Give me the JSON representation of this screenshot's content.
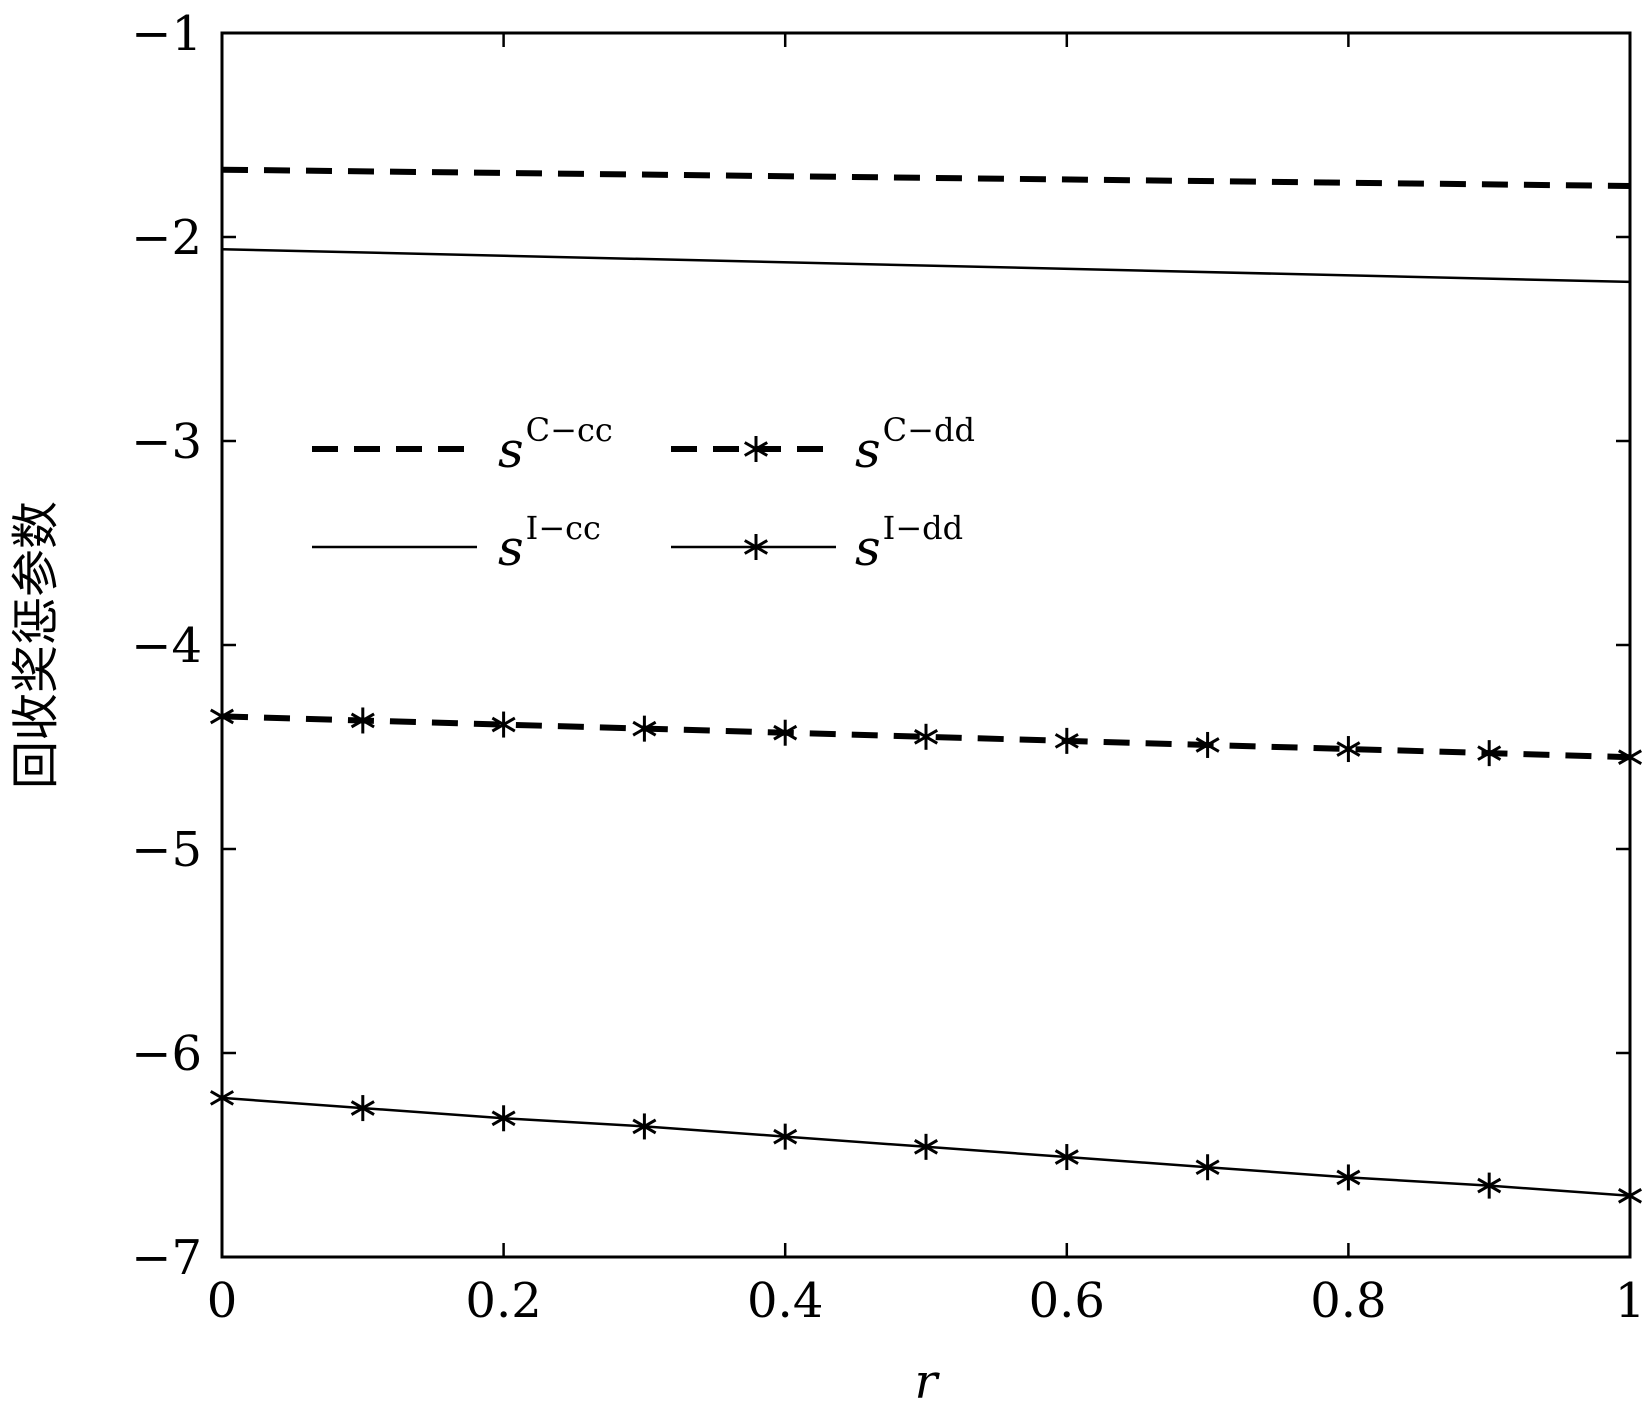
{
  "chart_data": {
    "type": "line",
    "title": "",
    "xlabel": "r",
    "ylabel": "回收奖惩参数",
    "xlim": [
      0,
      1
    ],
    "ylim": [
      -7,
      -1
    ],
    "x_ticks": [
      "0",
      "0.2",
      "0.4",
      "0.6",
      "0.8",
      "1"
    ],
    "y_ticks": [
      "−1",
      "−2",
      "−3",
      "−4",
      "−5",
      "−6",
      "−7"
    ],
    "grid": false,
    "legend_position": "center-left",
    "series": [
      {
        "name": "s",
        "sup": "C−cc",
        "style": "dashed",
        "marker": "none",
        "x": [
          0,
          1
        ],
        "y": [
          -1.67,
          -1.75
        ]
      },
      {
        "name": "s",
        "sup": "I−cc",
        "style": "solid",
        "marker": "none",
        "x": [
          0,
          1
        ],
        "y": [
          -2.06,
          -2.22
        ]
      },
      {
        "name": "s",
        "sup": "C−dd",
        "style": "dashed",
        "marker": "asterisk",
        "x": [
          0,
          0.1,
          0.2,
          0.3,
          0.4,
          0.5,
          0.6,
          0.7,
          0.8,
          0.9,
          1.0
        ],
        "y": [
          -4.35,
          -4.37,
          -4.39,
          -4.41,
          -4.43,
          -4.45,
          -4.47,
          -4.49,
          -4.51,
          -4.53,
          -4.55
        ]
      },
      {
        "name": "s",
        "sup": "I−dd",
        "style": "solid",
        "marker": "asterisk",
        "x": [
          0,
          0.1,
          0.2,
          0.3,
          0.4,
          0.5,
          0.6,
          0.7,
          0.8,
          0.9,
          1.0
        ],
        "y": [
          -6.22,
          -6.27,
          -6.32,
          -6.36,
          -6.41,
          -6.46,
          -6.51,
          -6.56,
          -6.61,
          -6.65,
          -6.7
        ]
      }
    ],
    "colors": {
      "line": "#000000",
      "background": "#ffffff"
    }
  }
}
